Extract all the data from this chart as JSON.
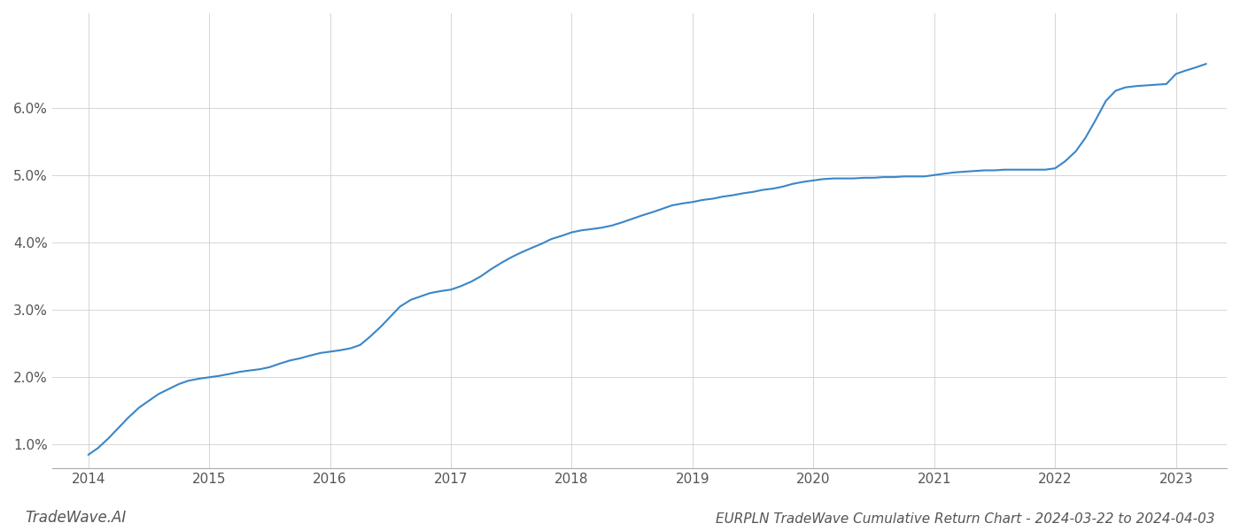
{
  "title": "EURPLN TradeWave Cumulative Return Chart - 2024-03-22 to 2024-04-03",
  "watermark": "TradeWave.AI",
  "line_color": "#3a86c8",
  "background_color": "#ffffff",
  "grid_color": "#cccccc",
  "x_values": [
    2014.0,
    2014.08,
    2014.17,
    2014.25,
    2014.33,
    2014.42,
    2014.5,
    2014.58,
    2014.67,
    2014.75,
    2014.83,
    2014.92,
    2015.0,
    2015.08,
    2015.17,
    2015.25,
    2015.33,
    2015.42,
    2015.5,
    2015.58,
    2015.67,
    2015.75,
    2015.83,
    2015.92,
    2016.0,
    2016.08,
    2016.17,
    2016.25,
    2016.33,
    2016.42,
    2016.5,
    2016.58,
    2016.67,
    2016.75,
    2016.83,
    2016.92,
    2017.0,
    2017.08,
    2017.17,
    2017.25,
    2017.33,
    2017.42,
    2017.5,
    2017.58,
    2017.67,
    2017.75,
    2017.83,
    2017.92,
    2018.0,
    2018.08,
    2018.17,
    2018.25,
    2018.33,
    2018.42,
    2018.5,
    2018.58,
    2018.67,
    2018.75,
    2018.83,
    2018.92,
    2019.0,
    2019.08,
    2019.17,
    2019.25,
    2019.33,
    2019.42,
    2019.5,
    2019.58,
    2019.67,
    2019.75,
    2019.83,
    2019.92,
    2020.0,
    2020.08,
    2020.17,
    2020.25,
    2020.33,
    2020.42,
    2020.5,
    2020.58,
    2020.67,
    2020.75,
    2020.83,
    2020.92,
    2021.0,
    2021.08,
    2021.17,
    2021.25,
    2021.33,
    2021.42,
    2021.5,
    2021.58,
    2021.67,
    2021.75,
    2021.83,
    2021.92,
    2022.0,
    2022.08,
    2022.17,
    2022.25,
    2022.33,
    2022.42,
    2022.5,
    2022.58,
    2022.67,
    2022.75,
    2022.83,
    2022.92,
    2023.0,
    2023.08,
    2023.17,
    2023.25
  ],
  "y_values": [
    0.0085,
    0.0095,
    0.011,
    0.0125,
    0.014,
    0.0155,
    0.0165,
    0.0175,
    0.0183,
    0.019,
    0.0195,
    0.0198,
    0.02,
    0.0202,
    0.0205,
    0.0208,
    0.021,
    0.0212,
    0.0215,
    0.022,
    0.0225,
    0.0228,
    0.0232,
    0.0236,
    0.0238,
    0.024,
    0.0243,
    0.0248,
    0.026,
    0.0275,
    0.029,
    0.0305,
    0.0315,
    0.032,
    0.0325,
    0.0328,
    0.033,
    0.0335,
    0.0342,
    0.035,
    0.036,
    0.037,
    0.0378,
    0.0385,
    0.0392,
    0.0398,
    0.0405,
    0.041,
    0.0415,
    0.0418,
    0.042,
    0.0422,
    0.0425,
    0.043,
    0.0435,
    0.044,
    0.0445,
    0.045,
    0.0455,
    0.0458,
    0.046,
    0.0463,
    0.0465,
    0.0468,
    0.047,
    0.0473,
    0.0475,
    0.0478,
    0.048,
    0.0483,
    0.0487,
    0.049,
    0.0492,
    0.0494,
    0.0495,
    0.0495,
    0.0495,
    0.0496,
    0.0496,
    0.0497,
    0.0497,
    0.0498,
    0.0498,
    0.0498,
    0.05,
    0.0502,
    0.0504,
    0.0505,
    0.0506,
    0.0507,
    0.0507,
    0.0508,
    0.0508,
    0.0508,
    0.0508,
    0.0508,
    0.051,
    0.052,
    0.0535,
    0.0555,
    0.058,
    0.061,
    0.0625,
    0.063,
    0.0632,
    0.0633,
    0.0634,
    0.0635,
    0.065,
    0.0655,
    0.066,
    0.0665
  ],
  "x_ticks": [
    2014,
    2015,
    2016,
    2017,
    2018,
    2019,
    2020,
    2021,
    2022,
    2023
  ],
  "x_tick_labels": [
    "2014",
    "2015",
    "2016",
    "2017",
    "2018",
    "2019",
    "2020",
    "2021",
    "2022",
    "2023"
  ],
  "y_ticks": [
    0.01,
    0.02,
    0.03,
    0.04,
    0.05,
    0.06
  ],
  "y_tick_labels": [
    "1.0%",
    "2.0%",
    "3.0%",
    "4.0%",
    "5.0%",
    "6.0%"
  ],
  "xlim": [
    2013.7,
    2023.42
  ],
  "ylim": [
    0.0065,
    0.074
  ],
  "title_fontsize": 11,
  "tick_fontsize": 11,
  "watermark_fontsize": 12,
  "line_width": 1.5
}
